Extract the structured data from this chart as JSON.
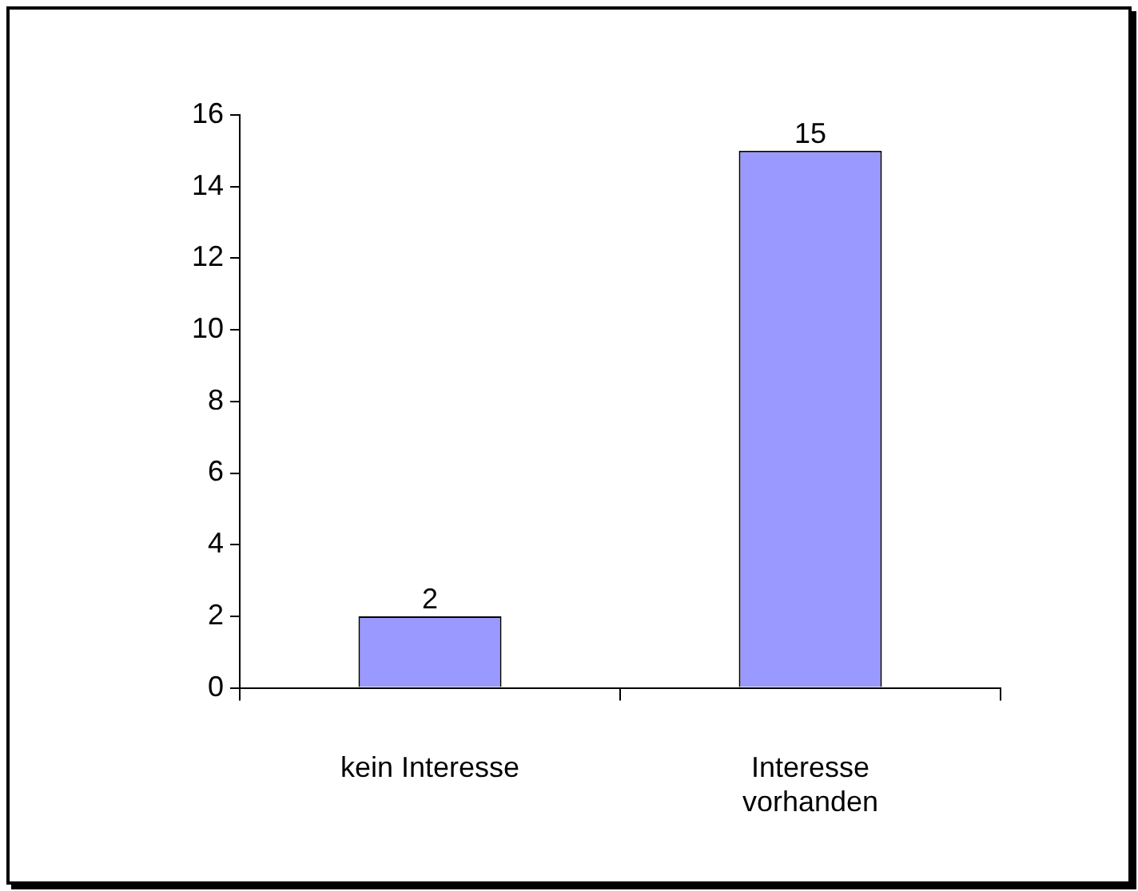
{
  "chart_data": {
    "type": "bar",
    "categories": [
      "kein Interesse",
      "Interesse vorhanden"
    ],
    "values": [
      2,
      15
    ],
    "color": "#9999ff",
    "ylim": [
      0,
      16
    ],
    "yticks": [
      0,
      2,
      4,
      6,
      8,
      10,
      12,
      14,
      16
    ],
    "grid": false,
    "legend": false,
    "data_labels": true
  }
}
